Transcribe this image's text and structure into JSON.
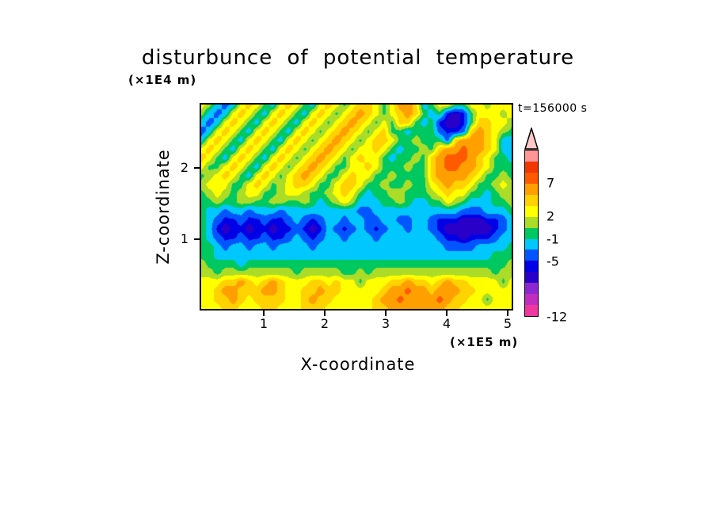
{
  "chart_data": {
    "type": "heatmap",
    "title": "disturbunce of potential temperature",
    "xlabel": "X-coordinate",
    "ylabel": "Z-coordinate",
    "x_unit": "(×1E5 m)",
    "z_unit": "(×1E4 m)",
    "time_label": "t=156000 s",
    "x_range": [
      0,
      5.15
    ],
    "z_range": [
      0,
      2.9
    ],
    "x_ticks": [
      1,
      2,
      3,
      4,
      5
    ],
    "z_ticks": [
      1,
      2
    ],
    "legend_position": "right",
    "levels": [
      -12,
      -10.5,
      -9,
      -7.5,
      -6,
      -5,
      -3,
      -1,
      0.5,
      2,
      3.5,
      5,
      7,
      8.5,
      10,
      11.5
    ],
    "colors": [
      "#ee37a0",
      "#c02ec0",
      "#8c28d2",
      "#2800c8",
      "#0000e6",
      "#0055ff",
      "#00c8ff",
      "#00c860",
      "#aadc28",
      "#ffff00",
      "#ffd200",
      "#ffa000",
      "#ff5a00",
      "#f03800",
      "#ff9696"
    ],
    "arrow_color": "#ffc8c8",
    "colorbar_labels": [
      {
        "text": "7",
        "value": 7
      },
      {
        "text": "2",
        "value": 2
      },
      {
        "text": "-1",
        "value": -1
      },
      {
        "text": "-5",
        "value": -5
      },
      {
        "text": "-12",
        "value": -12
      }
    ],
    "grid": {
      "rows": 24,
      "cols": 40,
      "values": [
        [
          2.8,
          1.2,
          -2,
          -4,
          -2,
          2.8,
          4.2,
          2.8,
          0,
          -2,
          2.8,
          4.2,
          2.8,
          0,
          -2,
          2.8,
          4.2,
          2.8,
          0,
          2.8,
          4.2,
          4.2,
          2.8,
          0,
          2.8,
          6,
          6,
          4.2,
          -2,
          0,
          2.8,
          2.8,
          0,
          0,
          2.8,
          2.8,
          1.2,
          2.8,
          2.8,
          2.8
        ],
        [
          1.2,
          -2,
          -4,
          -2,
          2.8,
          4.2,
          2.8,
          0,
          -2,
          2.8,
          4.2,
          2.8,
          0,
          -2,
          2.8,
          4.2,
          2.8,
          0,
          2.8,
          4.2,
          6,
          4.2,
          2.8,
          0,
          2.8,
          4.2,
          6,
          4.2,
          0,
          -2,
          0,
          -5.5,
          -6.8,
          -5.5,
          0,
          2.8,
          2.8,
          2.8,
          1.2,
          2.8
        ],
        [
          -2,
          -4,
          -2,
          2.8,
          4.2,
          2.8,
          0,
          -2,
          2.8,
          4.2,
          2.8,
          0,
          -2,
          2.8,
          4.2,
          2.8,
          0,
          2.8,
          4.2,
          6,
          4.2,
          2.8,
          0,
          2.8,
          0,
          4.2,
          4.2,
          0,
          -2,
          0,
          -5.5,
          -6.8,
          -6.8,
          -5.5,
          0,
          4.2,
          4.2,
          2.8,
          2.8,
          1.2
        ],
        [
          -4,
          -2,
          2.8,
          4.2,
          2.8,
          0,
          -2,
          2.8,
          4.2,
          2.8,
          0,
          -2,
          2.8,
          4.2,
          2.8,
          0,
          2.8,
          4.2,
          6,
          4.2,
          2.8,
          0,
          2.8,
          4.2,
          0,
          0,
          -2,
          0,
          0,
          0,
          -4,
          -5.5,
          -5.5,
          -4,
          4.2,
          6,
          4.2,
          2.8,
          1.2,
          0
        ],
        [
          -2,
          2.8,
          4.2,
          2.8,
          0,
          -2,
          2.8,
          4.2,
          2.8,
          0,
          -2,
          2.8,
          4.2,
          2.8,
          0,
          2.8,
          4.2,
          6,
          4.2,
          2.8,
          0,
          2.8,
          4.2,
          4.2,
          2.8,
          0,
          0,
          1.2,
          0,
          0,
          0,
          -4,
          4.2,
          6,
          6,
          6,
          4.2,
          2.8,
          -2,
          -2
        ],
        [
          2.8,
          4.2,
          2.8,
          0,
          -2,
          2.8,
          4.2,
          2.8,
          0,
          -2,
          2.8,
          4.2,
          2.8,
          0,
          2.8,
          4.2,
          6,
          4.2,
          2.8,
          0,
          2.8,
          2.8,
          4.2,
          2.8,
          0,
          -2,
          0,
          0,
          1.2,
          0,
          4.2,
          6,
          6,
          7.8,
          6,
          6,
          4.2,
          2.8,
          -2,
          -2
        ],
        [
          4.2,
          2.8,
          0,
          -2,
          2.8,
          4.2,
          2.8,
          0,
          -2,
          2.8,
          4.2,
          2.8,
          0,
          2.8,
          4.2,
          6,
          4.2,
          2.8,
          0,
          2.8,
          4.2,
          2.8,
          2.8,
          0,
          -2,
          0,
          0,
          1.2,
          0,
          4.2,
          6,
          7.8,
          7.8,
          7.8,
          6,
          4.2,
          2.8,
          0,
          0,
          -2
        ],
        [
          2.8,
          0,
          0,
          2.8,
          4.2,
          2.8,
          0,
          -2,
          2.8,
          4.2,
          2.8,
          0,
          2.8,
          4.2,
          6,
          4.2,
          2.8,
          0,
          0,
          2.8,
          2.8,
          4.2,
          2.8,
          0,
          0,
          0,
          1.2,
          0,
          0,
          4.2,
          6,
          7.8,
          7.8,
          6,
          6,
          4.2,
          2.8,
          0,
          0,
          0
        ],
        [
          0,
          1.2,
          2.8,
          4.2,
          2.8,
          0,
          -2,
          2.8,
          4.2,
          2.8,
          0,
          2.8,
          4.2,
          6,
          4.2,
          2.8,
          0,
          0,
          2.8,
          4.2,
          2.8,
          2.8,
          0,
          0,
          1.2,
          0,
          0,
          0,
          0,
          4.2,
          6,
          6,
          6,
          6,
          4.2,
          2.8,
          0,
          0,
          1.2,
          0
        ],
        [
          1.2,
          2.8,
          2.8,
          2.8,
          0,
          0,
          2.8,
          4.2,
          2.8,
          0,
          1.2,
          2.8,
          4.2,
          4.2,
          2.8,
          0,
          0,
          2.8,
          4.2,
          4.2,
          2.8,
          0,
          0,
          1.2,
          0,
          0,
          1.2,
          0,
          0,
          2.8,
          4.2,
          6,
          4.2,
          4.2,
          2.8,
          0,
          0,
          1.2,
          2.8,
          1.2
        ],
        [
          0,
          1.2,
          2.8,
          1.2,
          0,
          1.2,
          2.8,
          2.8,
          0,
          0,
          1.2,
          2.8,
          2.8,
          1.2,
          0,
          0,
          1.2,
          2.8,
          4.2,
          2.8,
          0,
          -2,
          0,
          0,
          1.2,
          1.2,
          0,
          0,
          0,
          1.2,
          2.8,
          4.2,
          2.8,
          2.8,
          0,
          0,
          -2,
          0,
          1.2,
          1.2
        ],
        [
          0,
          0,
          1.2,
          0,
          0,
          1.2,
          1.2,
          0,
          0,
          1.2,
          1.2,
          0,
          0,
          1.2,
          0,
          -2,
          0,
          1.2,
          2.8,
          1.2,
          -2,
          -2,
          -2,
          0,
          0,
          1.2,
          0,
          -2,
          -2,
          0,
          0,
          2.8,
          1.2,
          0,
          -2,
          -2,
          -2,
          0,
          0,
          1.2
        ],
        [
          0,
          -2,
          -2,
          -4,
          -2,
          -2,
          -4,
          -2,
          -2,
          -2,
          -4,
          -2,
          -2,
          -2,
          -2,
          -2,
          -2,
          -2,
          -2,
          -2,
          -4,
          -4,
          -2,
          -2,
          -2,
          -2,
          -2,
          -2,
          -2,
          -2,
          -2,
          -2,
          -2,
          -4,
          -4,
          -4,
          -2,
          -2,
          -2,
          0
        ],
        [
          0,
          -2,
          -4,
          -5.5,
          -5.5,
          -4,
          -5.5,
          -5.5,
          -4,
          -5.5,
          -5.5,
          -4,
          -2,
          -4,
          -5.5,
          -4,
          -2,
          -2,
          -4,
          -2,
          -2,
          -4,
          -4,
          -2,
          -2,
          -4,
          -4,
          -2,
          -2,
          -4,
          -5.5,
          -5.5,
          -5.5,
          -6.8,
          -6.8,
          -6.8,
          -5.5,
          -5.5,
          -4,
          -2
        ],
        [
          0,
          -2,
          -5.5,
          -6.8,
          -5.5,
          -5.5,
          -6.8,
          -5.5,
          -5.5,
          -6.8,
          -5.5,
          -5.5,
          -4,
          -5.5,
          -6.8,
          -5.5,
          -2,
          -4,
          -5.5,
          -4,
          -2,
          -4,
          -5.5,
          -4,
          -2,
          -2,
          -4,
          -2,
          -2,
          -4,
          -5.5,
          -6.8,
          -6.8,
          -6.8,
          -6.8,
          -6.8,
          -6.8,
          -5.5,
          -4,
          -2
        ],
        [
          0,
          -2,
          -4,
          -5.5,
          -5.5,
          -4,
          -5.5,
          -5.5,
          -4,
          -5.5,
          -5.5,
          -4,
          -2,
          -4,
          -5.5,
          -4,
          -2,
          -2,
          -4,
          -2,
          -2,
          -2,
          -4,
          -2,
          -2,
          -2,
          -2,
          -2,
          -2,
          -2,
          -4,
          -5.5,
          -5.5,
          -6.8,
          -5.5,
          -5.5,
          -5.5,
          -4,
          -2,
          -2
        ],
        [
          0,
          0,
          -2,
          -4,
          -2,
          -2,
          -4,
          -2,
          -2,
          -4,
          -2,
          -2,
          -2,
          -2,
          -4,
          -2,
          -2,
          -2,
          -2,
          -2,
          -2,
          -2,
          -2,
          -2,
          -2,
          -2,
          -2,
          -2,
          -2,
          -2,
          -2,
          -4,
          -4,
          -4,
          -4,
          -2,
          -2,
          -2,
          -2,
          0
        ],
        [
          0,
          0,
          -2,
          -2,
          -2,
          -2,
          -2,
          -2,
          -2,
          -2,
          -2,
          -2,
          -2,
          -2,
          -2,
          -2,
          -2,
          -2,
          -2,
          -2,
          -2,
          -2,
          -2,
          -2,
          -2,
          -2,
          -2,
          -2,
          -2,
          -2,
          -2,
          -2,
          -2,
          -2,
          -2,
          -2,
          -2,
          0,
          0,
          0
        ],
        [
          1.2,
          0,
          0,
          0,
          0,
          -2,
          0,
          0,
          0,
          0,
          0,
          0,
          0,
          0,
          0,
          0,
          0,
          0,
          0,
          0,
          0,
          0,
          0,
          0,
          0,
          0,
          0,
          0,
          0,
          0,
          0,
          0,
          0,
          0,
          0,
          0,
          0,
          0,
          0,
          1.2
        ],
        [
          1.2,
          1.2,
          0,
          1.2,
          1.2,
          1.2,
          1.2,
          1.2,
          1.2,
          1.2,
          1.2,
          1.2,
          0,
          1.2,
          1.2,
          1.2,
          1.2,
          1.2,
          0,
          0,
          1.2,
          0,
          1.2,
          1.2,
          1.2,
          1.2,
          1.2,
          1.2,
          1.2,
          1.2,
          1.2,
          1.2,
          1.2,
          1.2,
          1.2,
          1.2,
          1.2,
          0,
          1.2,
          1.2
        ],
        [
          2.8,
          2.8,
          2.8,
          4.2,
          4.2,
          6,
          4.2,
          2.8,
          4.2,
          6,
          4.2,
          2.8,
          2.8,
          2.8,
          4.2,
          4.2,
          2.8,
          4.2,
          2.8,
          2.8,
          0,
          2.8,
          2.8,
          2.8,
          4.2,
          4.2,
          6,
          4.2,
          4.2,
          2.8,
          4.2,
          6,
          4.2,
          4.2,
          2.8,
          2.8,
          2.8,
          2.8,
          0,
          2.8
        ],
        [
          2.8,
          2.8,
          4.2,
          6,
          6,
          4.2,
          4.2,
          4.2,
          6,
          6,
          4.2,
          2.8,
          2.8,
          4.2,
          4.2,
          6,
          4.2,
          4.2,
          2.8,
          2.8,
          2.8,
          2.8,
          2.8,
          4.2,
          6,
          6,
          7.8,
          6,
          6,
          4.2,
          6,
          6,
          6,
          4.2,
          4.2,
          2.8,
          2.8,
          2.8,
          2.8,
          2.8
        ],
        [
          2.8,
          2.8,
          4.2,
          4.2,
          6,
          4.2,
          2.8,
          4.2,
          4.2,
          4.2,
          4.2,
          2.8,
          2.8,
          4.2,
          6,
          4.2,
          4.2,
          2.8,
          2.8,
          2.8,
          2.8,
          2.8,
          4.2,
          6,
          6,
          7.8,
          6,
          6,
          6,
          6,
          7.8,
          6,
          4.2,
          4.2,
          2.8,
          2.8,
          0,
          2.8,
          2.8,
          2.8
        ],
        [
          2.8,
          2.8,
          2.8,
          4.2,
          4.2,
          2.8,
          2.8,
          2.8,
          4.2,
          4.2,
          2.8,
          2.8,
          2.8,
          4.2,
          4.2,
          4.2,
          2.8,
          2.8,
          2.8,
          2.8,
          2.8,
          2.8,
          4.2,
          4.2,
          6,
          6,
          6,
          6,
          6,
          6,
          6,
          4.2,
          4.2,
          2.8,
          2.8,
          2.8,
          2.8,
          2.8,
          2.8,
          2.8
        ]
      ]
    }
  }
}
